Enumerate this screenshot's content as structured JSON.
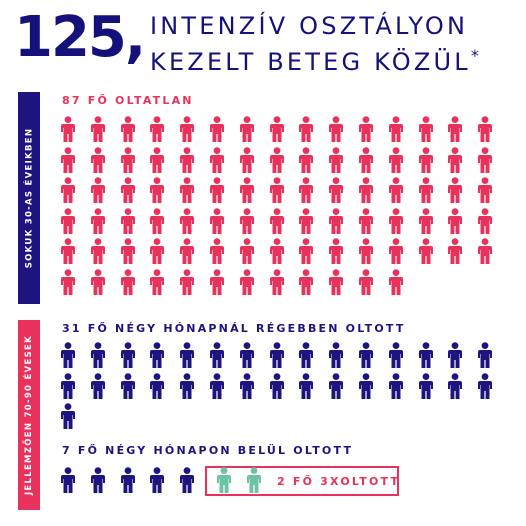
{
  "headline": {
    "number": "125,",
    "line1": "INTENZÍV OSZTÁLYON",
    "line2": "KEZELT BETEG KÖZÜL",
    "asterisk": "*"
  },
  "sidebars": {
    "top": "SOKUK 30-AS ÉVEIKBEN",
    "bottom": "JELLEMZŐEN 70-90 ÉVESEK"
  },
  "groups": {
    "unvaccinated": {
      "label": "87 FŐ OLTATLAN",
      "count": 87,
      "color": "#e8315b"
    },
    "older_vaccinated": {
      "label": "31 FŐ NÉGY HÓNAPNÁL RÉGEBBEN OLTOTT",
      "count": 31,
      "color": "#1e1480"
    },
    "recent_vaccinated": {
      "label": "7 FŐ NÉGY HÓNAPON BELÜL OLTOTT",
      "count": 5,
      "color": "#1e1480"
    },
    "boosted": {
      "label": "2 FŐ 3XOLTOTT",
      "count": 2,
      "color": "#6dc3a3"
    }
  },
  "icons": {
    "person": "person-icon"
  }
}
